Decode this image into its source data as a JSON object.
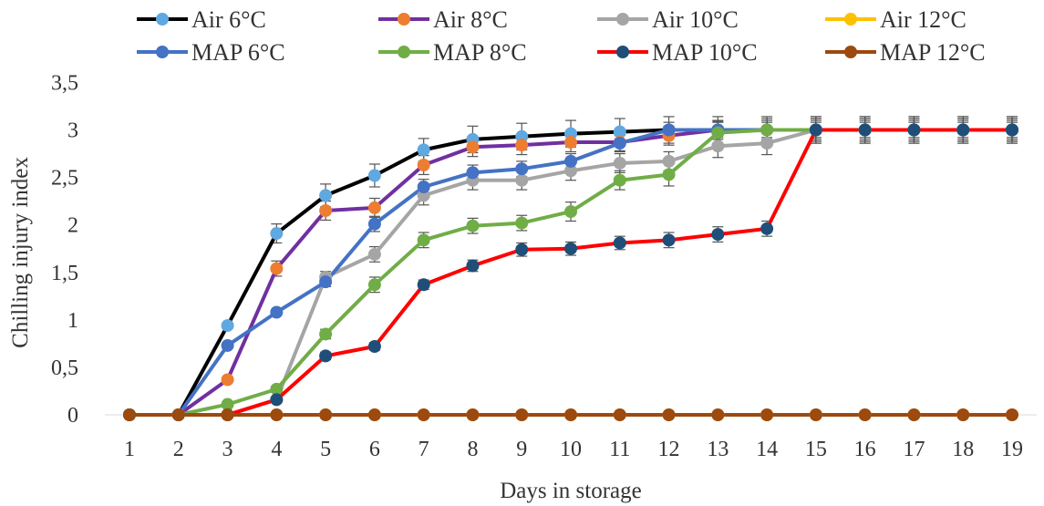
{
  "chart_data": {
    "type": "line",
    "title": "",
    "xlabel": "Days in storage",
    "ylabel": "Chilling injury index",
    "categories": [
      "1",
      "2",
      "3",
      "4",
      "5",
      "6",
      "7",
      "8",
      "9",
      "10",
      "11",
      "12",
      "13",
      "14",
      "15",
      "16",
      "17",
      "18",
      "19"
    ],
    "y_ticks": [
      "0",
      "0,5",
      "1",
      "1,5",
      "2",
      "2,5",
      "3",
      "3,5"
    ],
    "ylim": [
      0,
      3.5
    ],
    "grid": false,
    "legend_position": "top",
    "error_bars": true,
    "series": [
      {
        "name": "Air 6°C",
        "line_color": "#000000",
        "marker_color": "#5fa8e0",
        "values": [
          0,
          0,
          0.94,
          1.91,
          2.31,
          2.52,
          2.79,
          2.9,
          2.93,
          2.96,
          2.98,
          3.0,
          3.0,
          3.0,
          3.0,
          3.0,
          3.0,
          3.0,
          3.0
        ],
        "errors": [
          0,
          0,
          0.03,
          0.1,
          0.12,
          0.12,
          0.12,
          0.14,
          0.14,
          0.14,
          0.14,
          0.14,
          0.14,
          0.14,
          0.14,
          0.14,
          0.14,
          0.14,
          0.14
        ]
      },
      {
        "name": "Air 8°C",
        "line_color": "#7030a0",
        "marker_color": "#ed7d31",
        "values": [
          0,
          0,
          0.37,
          1.54,
          2.15,
          2.18,
          2.63,
          2.82,
          2.84,
          2.87,
          2.87,
          2.94,
          3.0,
          3.0,
          3.0,
          3.0,
          3.0,
          3.0,
          3.0
        ],
        "errors": [
          0,
          0,
          0.03,
          0.08,
          0.1,
          0.1,
          0.1,
          0.1,
          0.1,
          0.1,
          0.1,
          0.1,
          0.1,
          0.1,
          0.1,
          0.1,
          0.1,
          0.1,
          0.1
        ]
      },
      {
        "name": "Air 10°C",
        "line_color": "#a5a5a5",
        "marker_color": "#a5a5a5",
        "values": [
          0,
          0,
          0,
          0.16,
          1.45,
          1.69,
          2.31,
          2.47,
          2.47,
          2.57,
          2.65,
          2.67,
          2.83,
          2.86,
          3.0,
          3.0,
          3.0,
          3.0,
          3.0
        ],
        "errors": [
          0,
          0,
          0,
          0.03,
          0.06,
          0.08,
          0.1,
          0.1,
          0.1,
          0.1,
          0.1,
          0.1,
          0.12,
          0.12,
          0.12,
          0.12,
          0.12,
          0.12,
          0.12
        ]
      },
      {
        "name": "Air 12°C",
        "line_color": "#ffc000",
        "marker_color": "#ffc000",
        "values": [
          0,
          0,
          0,
          0,
          0,
          0,
          0,
          0,
          0,
          0,
          0,
          0,
          0,
          0,
          0,
          0,
          0,
          0,
          0
        ],
        "errors": [
          0,
          0,
          0,
          0,
          0,
          0,
          0,
          0,
          0,
          0,
          0,
          0,
          0,
          0,
          0,
          0,
          0,
          0,
          0
        ]
      },
      {
        "name": "MAP 6°C",
        "line_color": "#4472c4",
        "marker_color": "#4472c4",
        "values": [
          0,
          0,
          0.73,
          1.08,
          1.4,
          2.01,
          2.4,
          2.55,
          2.59,
          2.67,
          2.86,
          3.0,
          3.0,
          3.0,
          3.0,
          3.0,
          3.0,
          3.0,
          3.0
        ],
        "errors": [
          0,
          0,
          0.03,
          0.03,
          0.05,
          0.08,
          0.08,
          0.08,
          0.08,
          0.08,
          0.08,
          0.08,
          0.08,
          0.08,
          0.08,
          0.08,
          0.08,
          0.08,
          0.08
        ]
      },
      {
        "name": "MAP 8°C",
        "line_color": "#70ad47",
        "marker_color": "#70ad47",
        "values": [
          0,
          0,
          0.11,
          0.27,
          0.85,
          1.37,
          1.84,
          1.99,
          2.02,
          2.14,
          2.47,
          2.53,
          2.97,
          3.0,
          3.0,
          3.0,
          3.0,
          3.0,
          3.0
        ],
        "errors": [
          0,
          0,
          0.02,
          0.03,
          0.05,
          0.08,
          0.08,
          0.08,
          0.08,
          0.1,
          0.1,
          0.12,
          0.12,
          0.12,
          0.12,
          0.12,
          0.12,
          0.12,
          0.12
        ]
      },
      {
        "name": "MAP 10°C",
        "line_color": "#ff0000",
        "marker_color": "#1f4e79",
        "values": [
          0,
          0,
          0,
          0.16,
          0.62,
          0.72,
          1.37,
          1.57,
          1.74,
          1.75,
          1.81,
          1.84,
          1.9,
          1.96,
          3.0,
          3.0,
          3.0,
          3.0,
          3.0
        ],
        "errors": [
          0,
          0,
          0,
          0.03,
          0.04,
          0.04,
          0.05,
          0.06,
          0.07,
          0.07,
          0.07,
          0.08,
          0.08,
          0.08,
          0.14,
          0.14,
          0.14,
          0.14,
          0.14
        ]
      },
      {
        "name": "MAP 12°C",
        "line_color": "#9c4a0f",
        "marker_color": "#9c4a0f",
        "values": [
          0,
          0,
          0,
          0,
          0,
          0,
          0,
          0,
          0,
          0,
          0,
          0,
          0,
          0,
          0,
          0,
          0,
          0,
          0
        ],
        "errors": [
          0,
          0,
          0,
          0,
          0,
          0,
          0,
          0,
          0,
          0,
          0,
          0,
          0,
          0,
          0,
          0,
          0,
          0,
          0
        ]
      }
    ]
  }
}
